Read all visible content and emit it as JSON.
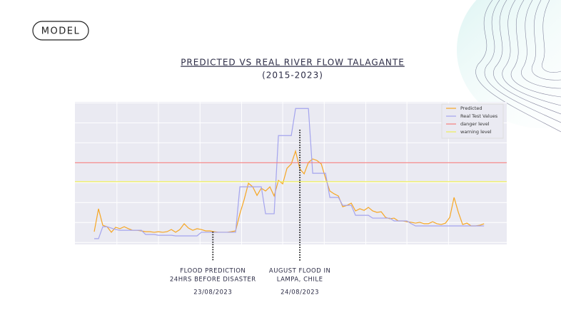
{
  "badge": "MODEL",
  "chart_data": {
    "type": "line",
    "title": "PREDICTED VS REAL RIVER FLOW  TALAGANTE",
    "subtitle": "(2015-2023)",
    "xlim": [
      -4.5,
      96.3
    ],
    "ylim": [
      -0.1,
      7.05
    ],
    "xticks": [
      5.3,
      15,
      24.7,
      34.4,
      44,
      53.7,
      63.4,
      73,
      82.7
    ],
    "yticks": [
      0,
      1,
      2,
      3,
      4,
      5,
      6,
      7
    ],
    "grid": true,
    "legend": "upper right",
    "series": [
      {
        "name": "Predicted",
        "color": "#f6a623",
        "values": [
          0.54,
          1.69,
          0.86,
          0.79,
          0.51,
          0.76,
          0.69,
          0.79,
          0.69,
          0.61,
          0.61,
          0.58,
          0.54,
          0.54,
          0.51,
          0.54,
          0.51,
          0.54,
          0.65,
          0.51,
          0.65,
          0.94,
          0.72,
          0.61,
          0.69,
          0.65,
          0.58,
          0.58,
          0.54,
          0.51,
          0.51,
          0.51,
          0.54,
          0.58,
          1.44,
          2.15,
          2.97,
          2.79,
          2.36,
          2.72,
          2.58,
          2.79,
          2.33,
          3.11,
          2.94,
          3.72,
          3.94,
          4.58,
          3.69,
          3.44,
          4.01,
          4.19,
          4.11,
          3.94,
          3.22,
          2.58,
          2.44,
          2.33,
          1.79,
          1.86,
          1.97,
          1.58,
          1.69,
          1.61,
          1.76,
          1.58,
          1.51,
          1.54,
          1.26,
          1.19,
          1.22,
          1.08,
          1.08,
          1.04,
          1.01,
          0.97,
          1.01,
          0.94,
          0.94,
          1.04,
          0.94,
          0.9,
          0.97,
          1.26,
          2.26,
          1.51,
          0.9,
          0.97,
          0.83,
          0.83,
          0.86,
          0.94
        ]
      },
      {
        "name": "Real Test Values",
        "color": "#a4a4ee",
        "values": [
          0.19,
          0.19,
          0.79,
          0.79,
          0.72,
          0.65,
          0.61,
          0.61,
          0.61,
          0.61,
          0.61,
          0.61,
          0.4,
          0.4,
          0.4,
          0.36,
          0.36,
          0.36,
          0.36,
          0.33,
          0.33,
          0.33,
          0.33,
          0.33,
          0.33,
          0.51,
          0.51,
          0.51,
          0.51,
          0.51,
          0.51,
          0.51,
          0.51,
          0.51,
          2.79,
          2.79,
          2.79,
          2.79,
          2.79,
          2.79,
          1.44,
          1.44,
          1.44,
          5.36,
          5.36,
          5.36,
          5.36,
          6.72,
          6.72,
          6.72,
          6.72,
          3.47,
          3.47,
          3.47,
          3.47,
          2.26,
          2.26,
          2.26,
          1.86,
          1.86,
          1.86,
          1.36,
          1.36,
          1.36,
          1.36,
          1.22,
          1.22,
          1.22,
          1.22,
          1.22,
          1.08,
          1.08,
          1.08,
          1.08,
          0.94,
          0.83,
          0.83,
          0.83,
          0.83,
          0.83,
          0.83,
          0.83,
          0.83,
          0.83,
          0.83,
          0.83,
          0.83,
          0.83,
          0.83,
          0.83,
          0.83,
          0.83
        ]
      },
      {
        "name": "danger level",
        "color": "#f47f7f",
        "level": 4.0
      },
      {
        "name": "warning level",
        "color": "#eeee5a",
        "level": 3.05
      }
    ],
    "annotations": [
      {
        "x": 27.7,
        "lines": [
          "FLOOD PREDICTION",
          "24HRS BEFORE DISASTER"
        ],
        "date": "23/08/2023"
      },
      {
        "x": 48,
        "lines": [
          "AUGUST FLOOD IN",
          "LAMPA, CHILE"
        ],
        "date": "24/08/2023"
      }
    ]
  }
}
